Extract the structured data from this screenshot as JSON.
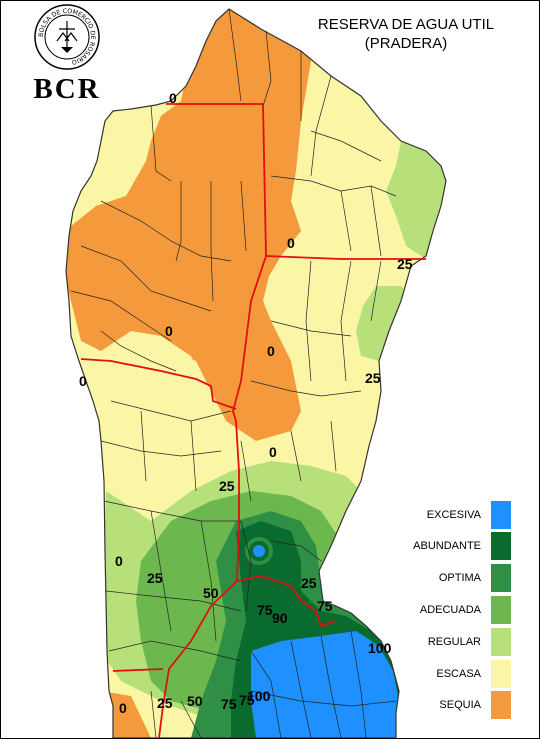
{
  "map": {
    "title_line1": "RESERVA DE AGUA UTIL",
    "title_line2": "(PRADERA)",
    "logo_text": "BCR",
    "seal_text": "BOLSA DE COMERCIO DE ROSARIO",
    "legend": [
      {
        "label": "EXCESIVA",
        "color": "#1e90ff"
      },
      {
        "label": "ABUNDANTE",
        "color": "#0a6b2f"
      },
      {
        "label": "OPTIMA",
        "color": "#2f8f44"
      },
      {
        "label": "ADECUADA",
        "color": "#6cb84e"
      },
      {
        "label": "REGULAR",
        "color": "#b7e07a"
      },
      {
        "label": "ESCASA",
        "color": "#fbf6a6"
      },
      {
        "label": "SEQUIA",
        "color": "#f59a3c"
      }
    ],
    "contour_labels": [
      "0",
      "0",
      "25",
      "0",
      "0",
      "25",
      "0",
      "25",
      "0",
      "0",
      "25",
      "25",
      "50",
      "75",
      "90",
      "75",
      "75",
      "100",
      "25",
      "50",
      "75",
      "100",
      "0"
    ]
  }
}
